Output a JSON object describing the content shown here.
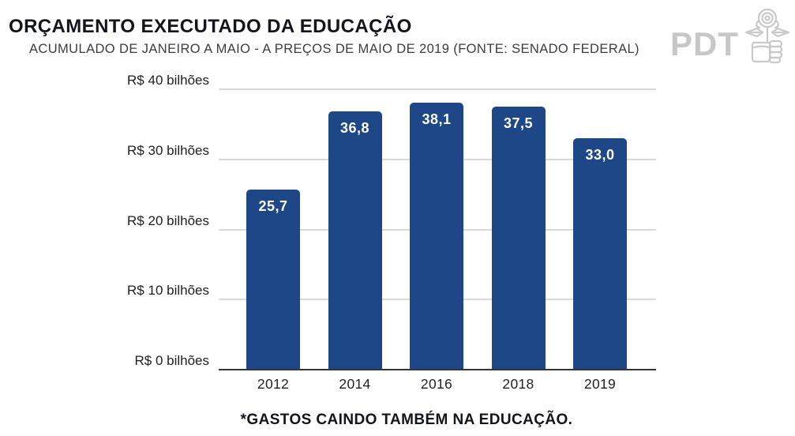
{
  "header": {
    "title": "ORÇAMENTO EXECUTADO DA EDUCAÇÃO",
    "subtitle": "ACUMULADO DE JANEIRO A MAIO - A PREÇOS DE MAIO DE 2019 (FONTE: SENADO FEDERAL)"
  },
  "logo": {
    "text": "PDT",
    "icon": "fist-holding-rose-icon",
    "color": "#c7c7c7"
  },
  "chart_data": {
    "type": "bar",
    "title": "ORÇAMENTO EXECUTADO DA EDUCAÇÃO",
    "subtitle": "ACUMULADO DE JANEIRO A MAIO - A PREÇOS DE MAIO DE 2019 (FONTE: SENADO FEDERAL)",
    "categories": [
      "2012",
      "2014",
      "2016",
      "2018",
      "2019"
    ],
    "values": [
      25.7,
      36.8,
      38.1,
      37.5,
      33.0
    ],
    "value_labels": [
      "25,7",
      "36,8",
      "38,1",
      "37,5",
      "33,0"
    ],
    "unit": "R$ bilhões",
    "ylabel": "",
    "xlabel": "",
    "ylim": [
      0,
      40
    ],
    "ytick_step": 10,
    "ytick_labels": [
      "R$ 0 bilhões",
      "R$ 10 bilhões",
      "R$ 20 bilhões",
      "R$ 30 bilhões",
      "R$ 40 bilhões"
    ],
    "grid": true,
    "legend": false,
    "bar_color": "#1d4787",
    "bar_label_color": "#ffffff",
    "gridline_color": "#d9d9d9",
    "axis_color": "#33333a"
  },
  "footer": {
    "caption": "*GASTOS CAINDO TAMBÉM NA EDUCAÇÃO."
  }
}
